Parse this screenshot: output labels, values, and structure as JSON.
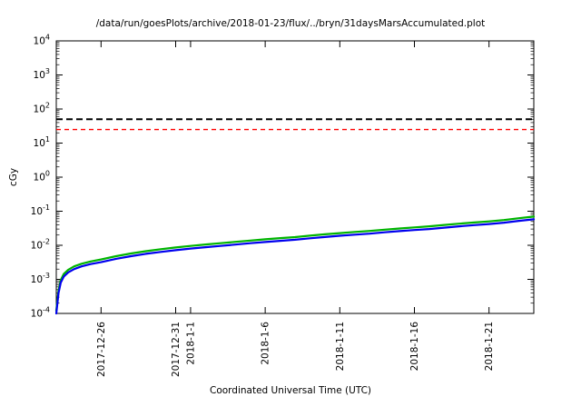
{
  "chart_data": {
    "type": "line",
    "title": "/data/run/goesPlots/archive/2018-01-23/flux/../bryn/31daysMarsAccumulated.plot",
    "xlabel": "Coordinated Universal Time (UTC)",
    "ylabel": "cGy",
    "y_scale": "log10",
    "ylim": [
      0.0001,
      10000.0
    ],
    "y_ticks_exponents": [
      4,
      3,
      2,
      1,
      0,
      -1,
      -2,
      -3,
      -4
    ],
    "x_range_days": [
      0,
      32
    ],
    "x_epoch_note": "days measured from 2017-12-23",
    "x_ticks": [
      {
        "day": 3,
        "label": "2017-12-26"
      },
      {
        "day": 8,
        "label": "2017-12-31"
      },
      {
        "day": 9,
        "label": "2018-1-1"
      },
      {
        "day": 14,
        "label": "2018-1-6"
      },
      {
        "day": 19,
        "label": "2018-1-11"
      },
      {
        "day": 24,
        "label": "2018-1-16"
      },
      {
        "day": 29,
        "label": "2018-1-21"
      }
    ],
    "hlines": [
      {
        "name": "upper-dose-limit",
        "value": 50,
        "color": "#000000",
        "style": "dashed",
        "width": 2,
        "dash": "7,4"
      },
      {
        "name": "lower-dose-limit",
        "value": 25,
        "color": "#ff0000",
        "style": "dashed",
        "width": 1.4,
        "dash": "5,4"
      }
    ],
    "x": [
      0,
      0.15,
      0.3,
      0.5,
      0.8,
      1.2,
      1.7,
      2.3,
      3,
      4,
      5,
      6,
      7,
      8,
      9,
      10,
      11,
      12,
      13,
      14,
      15,
      16,
      17,
      18,
      19,
      20,
      21,
      22,
      23,
      24,
      25,
      26,
      27,
      28,
      29,
      30,
      31,
      32
    ],
    "series": [
      {
        "name": "accumulated-dose-green",
        "color": "#00b400",
        "width": 2.2,
        "values": [
          0.00012,
          0.00048,
          0.00096,
          0.00144,
          0.00192,
          0.0024,
          0.00288,
          0.00336,
          0.00384,
          0.0048,
          0.00576,
          0.00672,
          0.00768,
          0.00864,
          0.0096,
          0.0106,
          0.0115,
          0.0126,
          0.0138,
          0.015,
          0.0162,
          0.0174,
          0.0192,
          0.021,
          0.0228,
          0.0246,
          0.0264,
          0.0288,
          0.0312,
          0.0336,
          0.036,
          0.0396,
          0.0432,
          0.0468,
          0.0504,
          0.0552,
          0.0624,
          0.0696
        ]
      },
      {
        "name": "accumulated-dose-blue",
        "color": "#0000ee",
        "width": 2.2,
        "values": [
          0.0001,
          0.0004,
          0.0008,
          0.0012,
          0.0016,
          0.002,
          0.0024,
          0.0028,
          0.0032,
          0.004,
          0.0048,
          0.0056,
          0.0064,
          0.0072,
          0.008,
          0.0088,
          0.0096,
          0.0105,
          0.0115,
          0.0125,
          0.0135,
          0.0145,
          0.016,
          0.0175,
          0.019,
          0.0205,
          0.022,
          0.024,
          0.026,
          0.028,
          0.03,
          0.033,
          0.036,
          0.039,
          0.042,
          0.046,
          0.052,
          0.058
        ]
      }
    ],
    "legend": "none",
    "grid": false
  }
}
